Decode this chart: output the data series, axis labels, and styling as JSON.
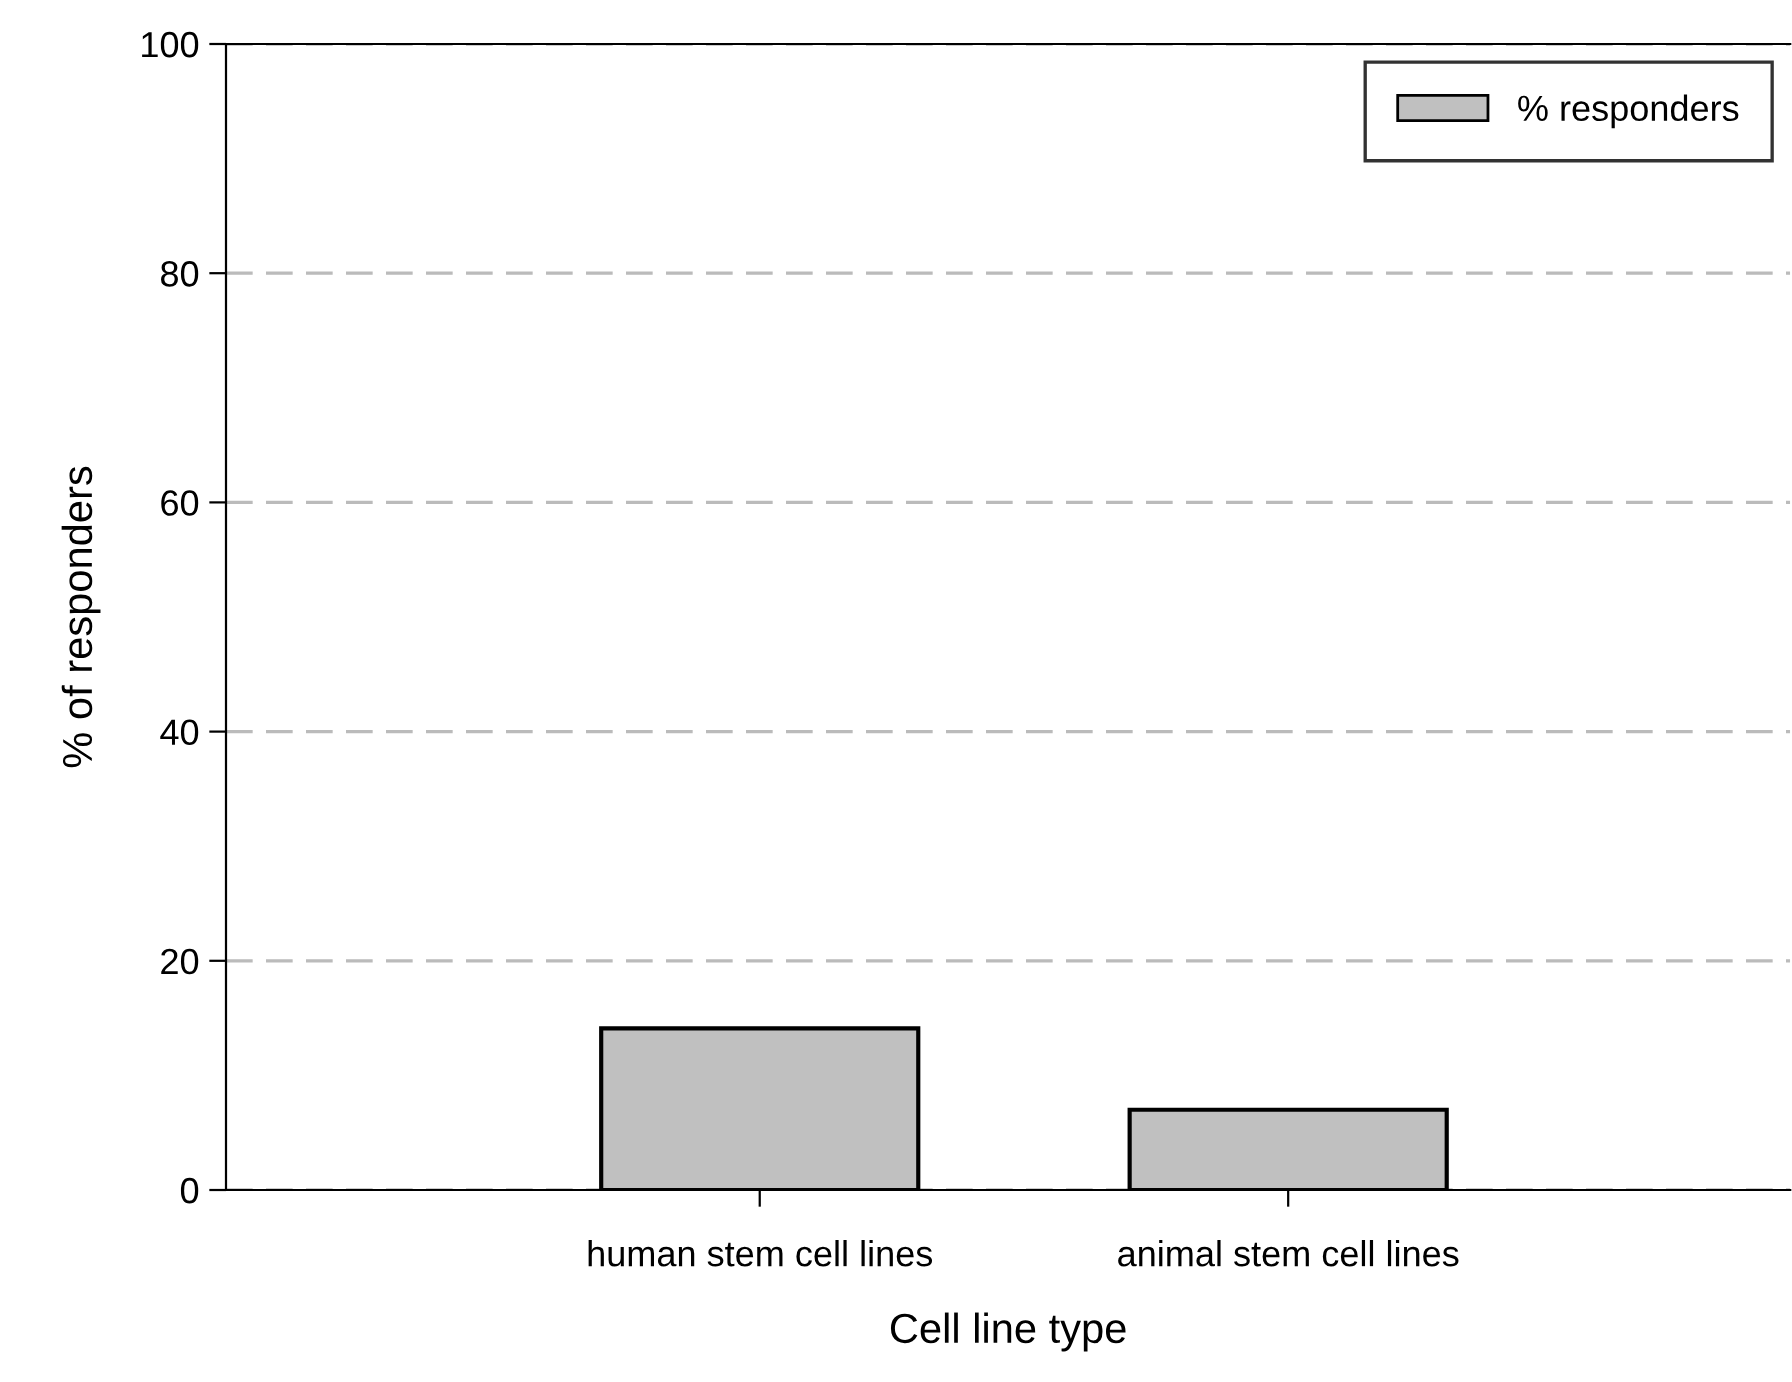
{
  "chart_data": {
    "type": "bar",
    "xlabel": "Cell line type",
    "ylabel": "% of responders",
    "categories": [
      "human stem cell lines",
      "animal stem cell lines"
    ],
    "series": [
      {
        "name": "% responders",
        "color": "#c0c0c0",
        "values": [
          14.1,
          7.0
        ]
      }
    ],
    "ylim": [
      0,
      100
    ],
    "yticks": [
      0,
      20,
      40,
      60,
      80,
      100
    ],
    "grid": "y",
    "legend": "top right"
  }
}
